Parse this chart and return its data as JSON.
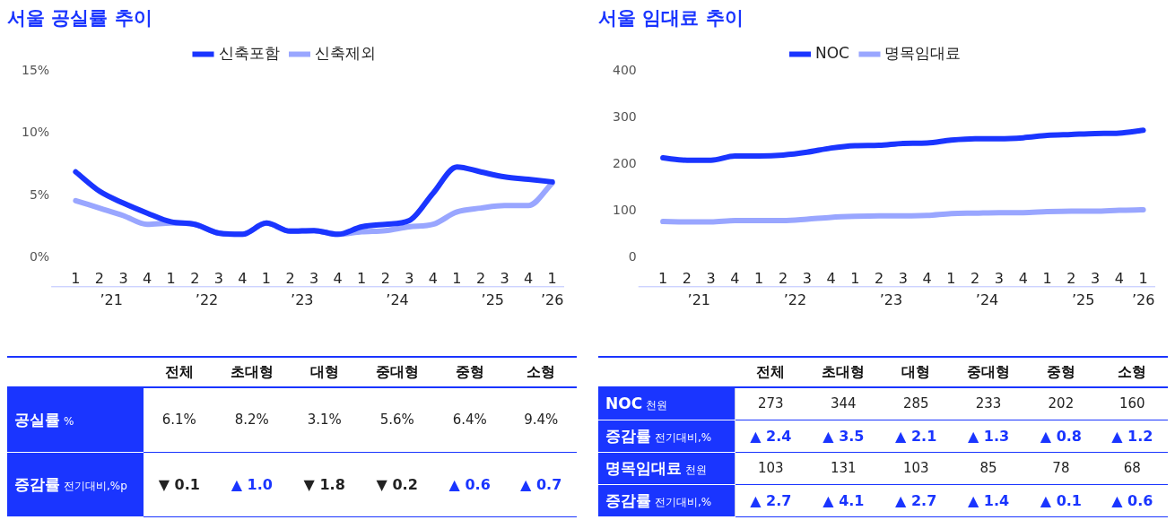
{
  "chart_data": [
    {
      "type": "line",
      "title": "서울 공실률 추이",
      "legend": "top",
      "marker": "none",
      "grid": false,
      "categories": [
        "1",
        "2",
        "3",
        "4",
        "1",
        "2",
        "3",
        "4",
        "1",
        "2",
        "3",
        "4",
        "1",
        "2",
        "3",
        "4",
        "1",
        "2",
        "3",
        "4",
        "1"
      ],
      "annotations": [
        "’21",
        "’22",
        "’23",
        "’24",
        "’25",
        "’26"
      ],
      "ylim": [
        0,
        15
      ],
      "yticks": [
        {
          "value": 0,
          "label": "0%"
        },
        {
          "value": 5,
          "label": "5%"
        },
        {
          "value": 10,
          "label": "10%"
        },
        {
          "value": 15,
          "label": "15%"
        }
      ],
      "series": [
        {
          "name": "신축포함",
          "color": "#1a35ff",
          "values": [
            6.9,
            5.35,
            4.4,
            3.6,
            2.9,
            2.7,
            2.0,
            1.9,
            2.8,
            2.15,
            2.2,
            1.9,
            2.5,
            2.7,
            3.0,
            5.2,
            7.3,
            6.9,
            6.5,
            6.3,
            6.1
          ]
        },
        {
          "name": "신축제외",
          "color": "#99a6ff",
          "values": [
            4.6,
            4.0,
            3.4,
            2.7,
            2.8,
            2.7,
            2.0,
            1.9,
            2.8,
            2.15,
            2.2,
            1.9,
            2.1,
            2.2,
            2.5,
            2.7,
            3.7,
            4.0,
            4.2,
            4.2,
            6.0
          ]
        }
      ]
    },
    {
      "type": "line",
      "title": "서울 임대료 추이",
      "legend": "top",
      "marker": "none",
      "grid": false,
      "categories": [
        "1",
        "2",
        "3",
        "4",
        "1",
        "2",
        "3",
        "4",
        "1",
        "2",
        "3",
        "4",
        "1",
        "2",
        "3",
        "4",
        "1",
        "2",
        "3",
        "4",
        "1"
      ],
      "annotations": [
        "’21",
        "’22",
        "’23",
        "’24",
        "’25",
        "’26"
      ],
      "ylim": [
        0,
        400
      ],
      "yticks": [
        0,
        100,
        200,
        300,
        400
      ],
      "series": [
        {
          "name": "NOC",
          "color": "#1a35ff",
          "values": [
            214,
            209,
            209,
            218,
            218,
            220,
            226,
            235,
            240,
            241,
            245,
            246,
            252,
            255,
            255,
            257,
            262,
            264,
            266,
            267,
            273
          ]
        },
        {
          "name": "명목임대료",
          "color": "#99a6ff",
          "values": [
            78,
            77,
            77,
            80,
            80,
            80,
            83,
            87,
            89,
            90,
            90,
            91,
            95,
            96,
            97,
            97,
            99,
            100,
            100,
            102,
            103
          ]
        }
      ]
    },
    {
      "type": "other",
      "categories": [
        "전체",
        "초대형",
        "대형",
        "중대형",
        "중형",
        "소형"
      ],
      "y_categories": [
        "공실률 %",
        "증감률 전기대비,%p"
      ],
      "colors": [
        [
          "#222222",
          "#222222",
          "#222222",
          "#222222",
          "#222222",
          "#222222"
        ],
        [
          "#222222",
          "#1a35ff",
          "#222222",
          "#222222",
          "#1a35ff",
          "#1a35ff"
        ]
      ],
      "cell_labels": [
        [
          "6.1%",
          "8.2%",
          "3.1%",
          "5.6%",
          "6.4%",
          "9.4%"
        ],
        [
          "▼ 0.1",
          "▲ 1.0",
          "▼ 1.8",
          "▼ 0.2",
          "▲ 0.6",
          "▲ 0.7"
        ]
      ]
    },
    {
      "type": "other",
      "categories": [
        "전체",
        "초대형",
        "대형",
        "중대형",
        "중형",
        "소형"
      ],
      "y_categories": [
        "NOC 천원",
        "증감률 전기대비,%",
        "명목임대료 천원",
        "증감률 전기대비,%"
      ],
      "colors": [
        [
          "#222222",
          "#222222",
          "#222222",
          "#222222",
          "#222222",
          "#222222"
        ],
        [
          "#1a35ff",
          "#1a35ff",
          "#1a35ff",
          "#1a35ff",
          "#1a35ff",
          "#1a35ff"
        ],
        [
          "#222222",
          "#222222",
          "#222222",
          "#222222",
          "#222222",
          "#222222"
        ],
        [
          "#1a35ff",
          "#1a35ff",
          "#1a35ff",
          "#1a35ff",
          "#1a35ff",
          "#1a35ff"
        ]
      ],
      "cell_labels": [
        [
          "273",
          "344",
          "285",
          "233",
          "202",
          "160"
        ],
        [
          "▲ 2.4",
          "▲ 3.5",
          "▲ 2.1",
          "▲ 1.3",
          "▲ 0.8",
          "▲ 1.2"
        ],
        [
          "103",
          "131",
          "103",
          "85",
          "78",
          "68"
        ],
        [
          "▲ 2.7",
          "▲ 4.1",
          "▲ 2.7",
          "▲ 1.4",
          "▲ 0.1",
          "▲ 0.6"
        ]
      ]
    }
  ]
}
